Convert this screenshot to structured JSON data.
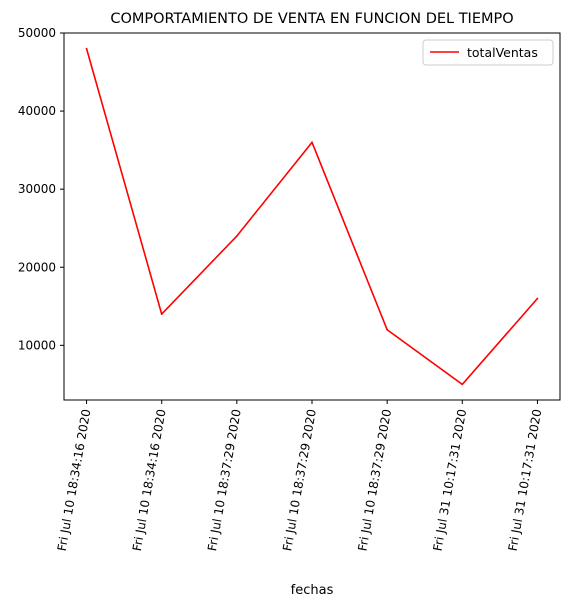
{
  "chart_data": {
    "type": "line",
    "title": "COMPORTAMIENTO DE VENTA EN FUNCION DEL TIEMPO",
    "xlabel": "fechas",
    "ylabel": "",
    "categories": [
      "Fri Jul 10 18:34:16 2020",
      "Fri Jul 10 18:34:16 2020",
      "Fri Jul 10 18:37:29 2020",
      "Fri Jul 10 18:37:29 2020",
      "Fri Jul 10 18:37:29 2020",
      "Fri Jul 31 10:17:31 2020",
      "Fri Jul 31 10:17:31 2020"
    ],
    "series": [
      {
        "name": "totalVentas",
        "color": "#ff0000",
        "values": [
          48000,
          14000,
          24000,
          36000,
          12000,
          5000,
          16000
        ]
      }
    ],
    "ylim": [
      3000,
      50000
    ],
    "yticks": [
      10000,
      20000,
      30000,
      40000,
      50000
    ],
    "legend": "top-right",
    "grid": false
  }
}
